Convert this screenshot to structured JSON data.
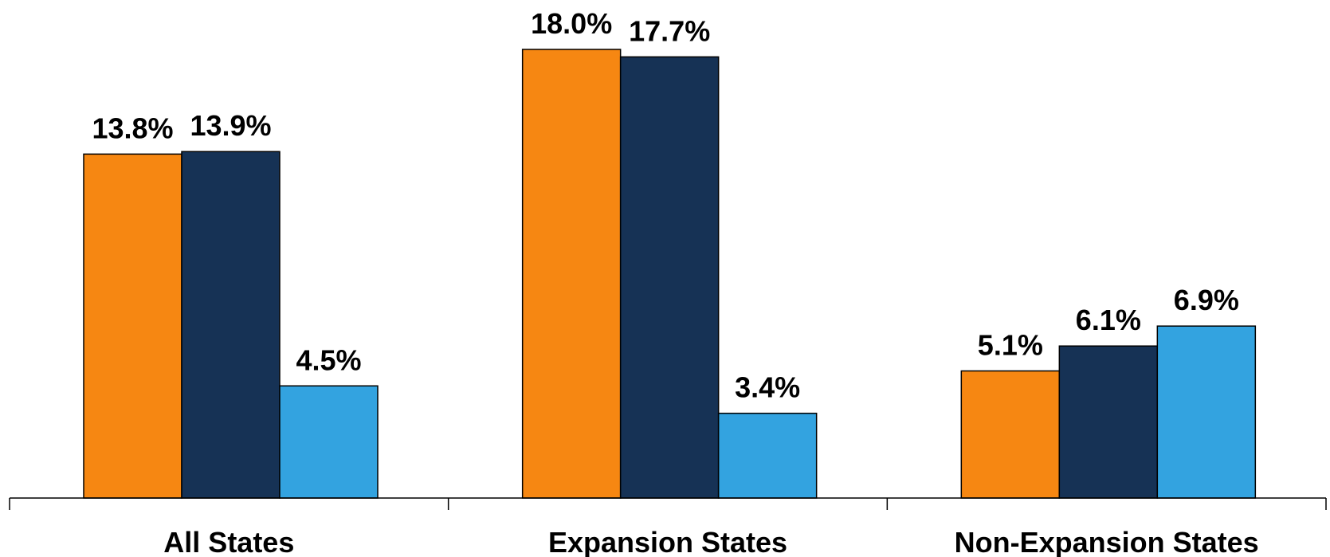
{
  "chart_data": {
    "type": "bar",
    "title": "",
    "xlabel": "",
    "ylabel": "",
    "categories": [
      "All States",
      "Expansion States",
      "Non-Expansion States"
    ],
    "series": [
      {
        "color": "#f68712",
        "values": [
          13.8,
          18.0,
          5.1
        ],
        "labels": [
          "13.8%",
          "18.0%",
          "5.1%"
        ]
      },
      {
        "color": "#163255",
        "values": [
          13.9,
          17.7,
          6.1
        ],
        "labels": [
          "13.9%",
          "17.7%",
          "6.1%"
        ]
      },
      {
        "color": "#33a3e0",
        "values": [
          4.5,
          3.4,
          6.9
        ],
        "labels": [
          "4.5%",
          "3.4%",
          "6.9%"
        ]
      }
    ],
    "ylim": [
      0,
      18.0
    ],
    "grid": false,
    "legend": "none"
  }
}
